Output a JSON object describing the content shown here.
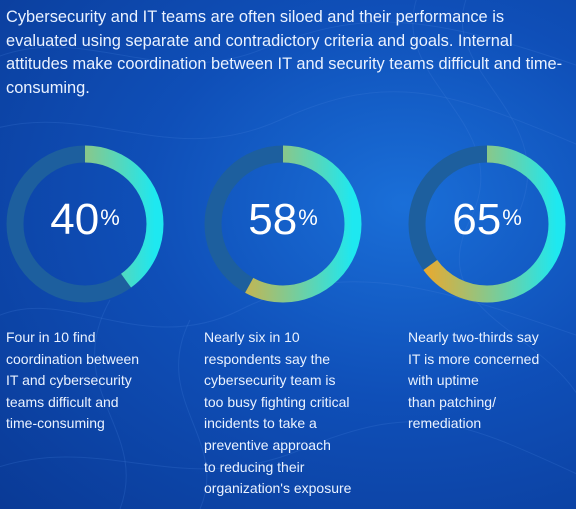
{
  "intro": "Cybersecurity and IT teams are often siloed and their performance is evaluated using separate and contradictory criteria and goals. Internal attitudes make coordination between IT and security teams difficult and time-consuming.",
  "stats": [
    {
      "value": "40",
      "unit": "%",
      "fraction": 0.4,
      "description": [
        "Four in 10 find",
        "coordination between",
        "IT and cybersecurity",
        "teams difficult and",
        "time-consuming"
      ]
    },
    {
      "value": "58",
      "unit": "%",
      "fraction": 0.58,
      "description": [
        "Nearly six in 10",
        "respondents say the",
        "cybersecurity team is",
        "too busy fighting critical",
        "incidents to take a",
        "preventive approach",
        "to reducing their",
        "organization's exposure"
      ]
    },
    {
      "value": "65",
      "unit": "%",
      "fraction": 0.65,
      "description": [
        "Nearly two-thirds say",
        "IT is more concerned",
        "with uptime",
        "than patching/",
        "remediation"
      ]
    }
  ],
  "colors": {
    "background": "#0f4fb8",
    "track": "#1d5f9e",
    "arc_start": "#f5a623",
    "arc_end": "#1ee8f0"
  }
}
